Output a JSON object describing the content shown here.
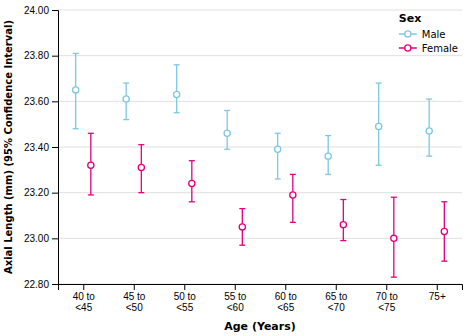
{
  "chart_data": {
    "type": "errorbar",
    "x_label": "Age (Years)",
    "y_label": "Axial Length (mm) (95% Confidence Interval)",
    "categories": [
      "40 to\n<45",
      "45 to\n<50",
      "50 to\n<55",
      "55 to\n<60",
      "60 to\n<65",
      "65 to\n<70",
      "70 to\n<75",
      "75+"
    ],
    "series": [
      {
        "name": "Male",
        "color": "#7ec8e3",
        "marker": "circle",
        "values": [
          23.65,
          23.61,
          23.63,
          23.46,
          23.39,
          23.36,
          23.49,
          23.47
        ],
        "lower": [
          23.48,
          23.52,
          23.55,
          23.39,
          23.26,
          23.28,
          23.32,
          23.36
        ],
        "upper": [
          23.81,
          23.68,
          23.76,
          23.56,
          23.46,
          23.45,
          23.68,
          23.61
        ]
      },
      {
        "name": "Female",
        "color": "#e5007e",
        "marker": "circle",
        "values": [
          23.32,
          23.31,
          23.24,
          23.05,
          23.19,
          23.06,
          23.0,
          23.03
        ],
        "lower": [
          23.19,
          23.2,
          23.16,
          22.97,
          23.07,
          22.99,
          22.83,
          22.9
        ],
        "upper": [
          23.46,
          23.41,
          23.34,
          23.13,
          23.28,
          23.17,
          23.18,
          23.16
        ]
      }
    ],
    "ylim": [
      22.8,
      24.0
    ],
    "yticks": [
      {
        "value": 22.8,
        "label": "22.80"
      },
      {
        "value": 23.0,
        "label": "23.00"
      },
      {
        "value": 23.2,
        "label": "23.20"
      },
      {
        "value": 23.4,
        "label": "23.40"
      },
      {
        "value": 23.6,
        "label": "23.60"
      },
      {
        "value": 23.8,
        "label": "23.80"
      },
      {
        "value": 24.0,
        "label": "24.00"
      }
    ],
    "grid": true,
    "legend": "upper right",
    "legend_title": "Sex"
  }
}
